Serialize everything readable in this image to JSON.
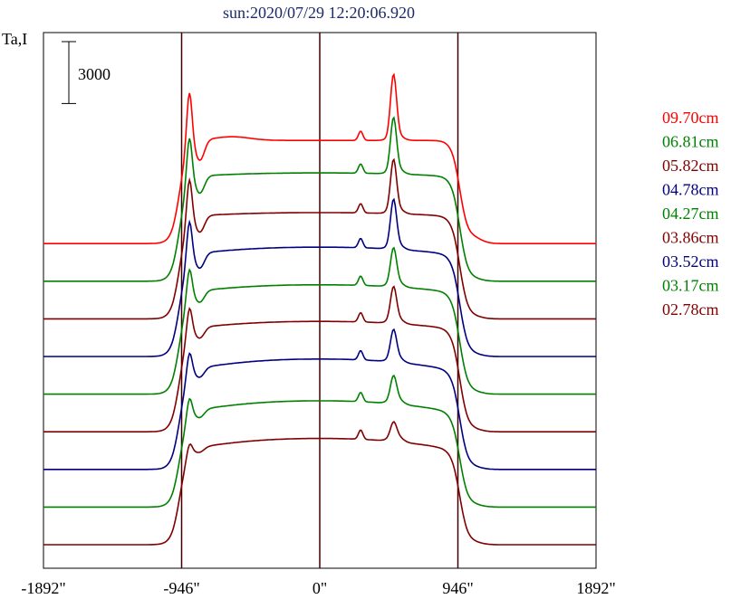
{
  "chart_data": {
    "type": "line",
    "title": "sun:2020/07/29 12:20:06.920",
    "ylabel": "Ta,I",
    "scale_bar_label": "3000",
    "scale_bar_value": 3000,
    "x_ticks": [
      {
        "value": -1892,
        "label": "-1892\""
      },
      {
        "value": -946,
        "label": "-946\""
      },
      {
        "value": 0,
        "label": "0\""
      },
      {
        "value": 946,
        "label": "946\""
      },
      {
        "value": 1892,
        "label": "1892\""
      }
    ],
    "xlim": [
      -1892,
      1892
    ],
    "vertical_lines": [
      -946,
      0,
      946
    ],
    "legend_position": "right",
    "series": [
      {
        "name": "09.70cm",
        "color": "#ff0000",
        "offset": 8,
        "disk_level": 10000,
        "limb_peak": 5500,
        "disk_shape": 0
      },
      {
        "name": "06.81cm",
        "color": "#008000",
        "offset": 7,
        "disk_level": 10500,
        "limb_peak": 4600,
        "disk_shape": 1
      },
      {
        "name": "05.82cm",
        "color": "#800000",
        "offset": 6,
        "disk_level": 10300,
        "limb_peak": 4400,
        "disk_shape": 1
      },
      {
        "name": "04.78cm",
        "color": "#000080",
        "offset": 5,
        "disk_level": 10600,
        "limb_peak": 4000,
        "disk_shape": 2
      },
      {
        "name": "04.27cm",
        "color": "#008000",
        "offset": 4,
        "disk_level": 10600,
        "limb_peak": 3000,
        "disk_shape": 2
      },
      {
        "name": "03.86cm",
        "color": "#800000",
        "offset": 3,
        "disk_level": 10700,
        "limb_peak": 2800,
        "disk_shape": 2
      },
      {
        "name": "03.52cm",
        "color": "#000080",
        "offset": 2,
        "disk_level": 10700,
        "limb_peak": 2400,
        "disk_shape": 3
      },
      {
        "name": "03.17cm",
        "color": "#008000",
        "offset": 1,
        "disk_level": 10300,
        "limb_peak": 2000,
        "disk_shape": 3
      },
      {
        "name": "02.78cm",
        "color": "#800000",
        "offset": 0,
        "disk_level": 10300,
        "limb_peak": 1200,
        "disk_shape": 3
      }
    ]
  }
}
